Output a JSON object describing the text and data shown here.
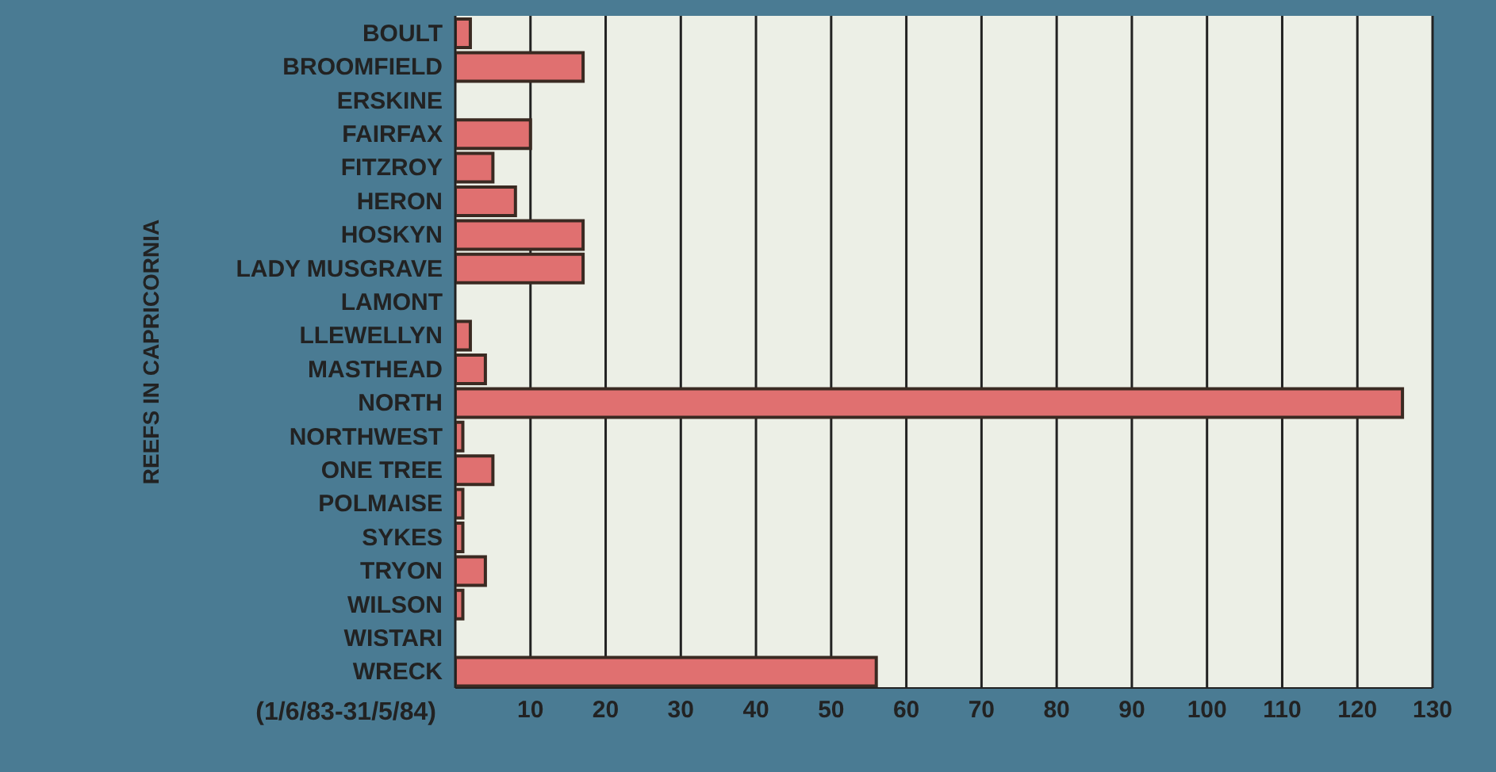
{
  "chart_data": {
    "type": "bar",
    "orientation": "horizontal",
    "xlabel": "(1/6/83-31/5/84)",
    "ylabel": "REEFS IN CAPRICORNIA",
    "categories": [
      "BOULT",
      "BROOMFIELD",
      "ERSKINE",
      "FAIRFAX",
      "FITZROY",
      "HERON",
      "HOSKYN",
      "LADY MUSGRAVE",
      "LAMONT",
      "LLEWELLYN",
      "MASTHEAD",
      "NORTH",
      "NORTHWEST",
      "ONE TREE",
      "POLMAISE",
      "SYKES",
      "TRYON",
      "WILSON",
      "WISTARI",
      "WRECK"
    ],
    "values": [
      2,
      17,
      0,
      10,
      5,
      8,
      17,
      17,
      0,
      2,
      4,
      126,
      1,
      5,
      1,
      1,
      4,
      1,
      0,
      56
    ],
    "color": "#e07070",
    "xlim": [
      0,
      130
    ],
    "xticks": [
      10,
      20,
      30,
      40,
      50,
      60,
      70,
      80,
      90,
      100,
      110,
      120,
      130
    ],
    "grid": "x"
  }
}
